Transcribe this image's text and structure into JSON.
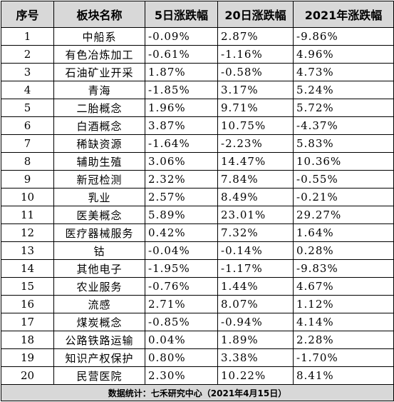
{
  "headers": [
    "序号",
    "板块名称",
    "5日涨跌幅",
    "20日涨跌幅",
    "2021年涨跌幅"
  ],
  "rows": [
    {
      "idx": "1",
      "name": "中船系",
      "d5": "-0.09%",
      "d20": "2.87%",
      "ytd": "-9.86%"
    },
    {
      "idx": "2",
      "name": "有色冶炼加工",
      "d5": "-0.61%",
      "d20": "-1.16%",
      "ytd": "4.96%"
    },
    {
      "idx": "3",
      "name": "石油矿业开采",
      "d5": "1.87%",
      "d20": "-0.58%",
      "ytd": "4.73%"
    },
    {
      "idx": "4",
      "name": "青海",
      "d5": "-1.85%",
      "d20": "3.17%",
      "ytd": "5.24%"
    },
    {
      "idx": "5",
      "name": "二胎概念",
      "d5": "1.96%",
      "d20": "9.71%",
      "ytd": "5.72%"
    },
    {
      "idx": "6",
      "name": "白酒概念",
      "d5": "3.87%",
      "d20": "10.75%",
      "ytd": "-4.37%"
    },
    {
      "idx": "7",
      "name": "稀缺资源",
      "d5": "-1.64%",
      "d20": "-2.23%",
      "ytd": "5.83%"
    },
    {
      "idx": "8",
      "name": "辅助生殖",
      "d5": "3.06%",
      "d20": "14.47%",
      "ytd": "10.36%"
    },
    {
      "idx": "9",
      "name": "新冠检测",
      "d5": "2.32%",
      "d20": "7.84%",
      "ytd": "-0.55%"
    },
    {
      "idx": "10",
      "name": "乳业",
      "d5": "2.57%",
      "d20": "8.49%",
      "ytd": "-0.21%"
    },
    {
      "idx": "11",
      "name": "医美概念",
      "d5": "5.89%",
      "d20": "23.01%",
      "ytd": "29.27%"
    },
    {
      "idx": "12",
      "name": "医疗器械服务",
      "d5": "0.42%",
      "d20": "7.32%",
      "ytd": "1.64%"
    },
    {
      "idx": "13",
      "name": "钴",
      "d5": "-0.04%",
      "d20": "-0.14%",
      "ytd": "0.28%"
    },
    {
      "idx": "14",
      "name": "其他电子",
      "d5": "-1.95%",
      "d20": "-1.17%",
      "ytd": "-9.83%"
    },
    {
      "idx": "15",
      "name": "农业服务",
      "d5": "-0.76%",
      "d20": "1.44%",
      "ytd": "4.67%"
    },
    {
      "idx": "16",
      "name": "流感",
      "d5": "2.71%",
      "d20": "8.07%",
      "ytd": "1.12%"
    },
    {
      "idx": "17",
      "name": "煤炭概念",
      "d5": "-0.85%",
      "d20": "-0.94%",
      "ytd": "4.14%"
    },
    {
      "idx": "18",
      "name": "公路铁路运输",
      "d5": "0.04%",
      "d20": "1.89%",
      "ytd": "2.28%"
    },
    {
      "idx": "19",
      "name": "知识产权保护",
      "d5": "0.80%",
      "d20": "3.38%",
      "ytd": "-1.70%"
    },
    {
      "idx": "20",
      "name": "民营医院",
      "d5": "2.30%",
      "d20": "10.22%",
      "ytd": "8.41%"
    }
  ],
  "footer": "数据统计：七禾研究中心（2021年4月15日）"
}
